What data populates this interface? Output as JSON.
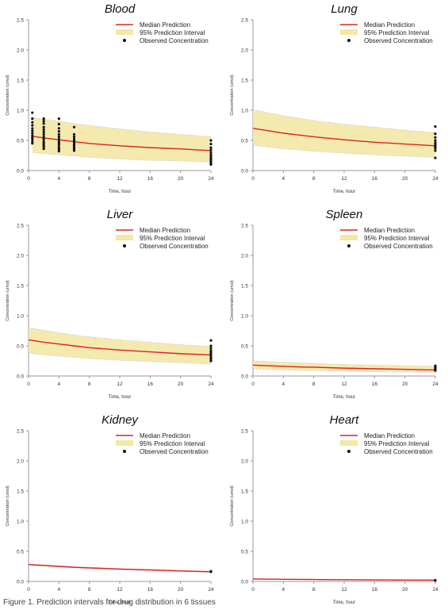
{
  "figure": {
    "caption": "Figure 1. Prediction intervals for drug distribution in 6 tissues",
    "colors": {
      "median": "#e02020",
      "band_fill": "#f3e8a6",
      "band_edge": "#c8c8c8",
      "observed": "#111111",
      "axis": "#999999"
    }
  },
  "chart_data": [
    {
      "type": "line",
      "title": "Blood",
      "xlabel": "Time, hour",
      "ylabel": "Concentration (umol)",
      "xlim": [
        0,
        24
      ],
      "ylim": [
        0,
        2.5
      ],
      "xticks": [
        "0",
        "4",
        "8",
        "12",
        "16",
        "20",
        "24"
      ],
      "yticks": [
        "0.0",
        "0.5",
        "1.0",
        "1.5",
        "2.0",
        "2.5"
      ],
      "legend": [
        "Median Prediction",
        "95% Prediction Interval",
        "Observed Concentration"
      ],
      "legend_position": "top-right",
      "x": [
        0.5,
        2,
        4,
        6,
        8,
        12,
        16,
        20,
        24
      ],
      "median": [
        0.57,
        0.54,
        0.51,
        0.48,
        0.45,
        0.41,
        0.38,
        0.36,
        0.33
      ],
      "lower": [
        0.3,
        0.28,
        0.26,
        0.24,
        0.22,
        0.19,
        0.17,
        0.16,
        0.14
      ],
      "upper": [
        0.88,
        0.85,
        0.82,
        0.78,
        0.75,
        0.69,
        0.64,
        0.6,
        0.56
      ],
      "observed": {
        "x": [
          0.5,
          0.5,
          0.5,
          0.5,
          0.5,
          0.5,
          0.5,
          0.5,
          0.5,
          0.5,
          0.5,
          0.5,
          2,
          2,
          2,
          2,
          2,
          2,
          2,
          2,
          2,
          2,
          2,
          2,
          2,
          2,
          4,
          4,
          4,
          4,
          4,
          4,
          4,
          4,
          4,
          4,
          4,
          4,
          4,
          6,
          6,
          6,
          6,
          6,
          6,
          6,
          6,
          6,
          6,
          6,
          24,
          24,
          24,
          24,
          24,
          24,
          24,
          24,
          24,
          24,
          24,
          24,
          24
        ],
        "y": [
          0.96,
          0.86,
          0.8,
          0.75,
          0.7,
          0.66,
          0.62,
          0.58,
          0.55,
          0.52,
          0.48,
          0.45,
          0.86,
          0.82,
          0.78,
          0.72,
          0.68,
          0.64,
          0.6,
          0.56,
          0.52,
          0.48,
          0.45,
          0.42,
          0.39,
          0.36,
          0.86,
          0.77,
          0.7,
          0.65,
          0.6,
          0.56,
          0.52,
          0.48,
          0.45,
          0.42,
          0.38,
          0.35,
          0.32,
          0.72,
          0.6,
          0.56,
          0.52,
          0.49,
          0.46,
          0.43,
          0.41,
          0.38,
          0.36,
          0.33,
          0.5,
          0.44,
          0.38,
          0.34,
          0.3,
          0.26,
          0.23,
          0.2,
          0.18,
          0.16,
          0.14,
          0.12,
          0.1
        ]
      }
    },
    {
      "type": "line",
      "title": "Lung",
      "xlabel": "Time, hour",
      "ylabel": "Concentration (umol)",
      "xlim": [
        0,
        24
      ],
      "ylim": [
        0,
        2.5
      ],
      "xticks": [
        "0",
        "4",
        "8",
        "12",
        "16",
        "20",
        "24"
      ],
      "yticks": [
        "0.0",
        "0.5",
        "1.0",
        "1.5",
        "2.0",
        "2.5"
      ],
      "legend": [
        "Median Prediction",
        "95% Prediction Interval",
        "Observed Concentration"
      ],
      "legend_position": "top-right",
      "x": [
        0,
        2,
        4,
        6,
        8,
        12,
        16,
        20,
        24
      ],
      "median": [
        0.7,
        0.66,
        0.62,
        0.59,
        0.56,
        0.51,
        0.47,
        0.44,
        0.41
      ],
      "lower": [
        0.42,
        0.39,
        0.36,
        0.34,
        0.32,
        0.29,
        0.26,
        0.24,
        0.22
      ],
      "upper": [
        1.01,
        0.96,
        0.91,
        0.87,
        0.83,
        0.77,
        0.72,
        0.67,
        0.63
      ],
      "observed": {
        "x": [
          24,
          24,
          24,
          24,
          24,
          24,
          24,
          24,
          24,
          24
        ],
        "y": [
          0.73,
          0.61,
          0.55,
          0.5,
          0.46,
          0.43,
          0.4,
          0.37,
          0.33,
          0.21
        ]
      }
    },
    {
      "type": "line",
      "title": "Liver",
      "xlabel": "Time, hour",
      "ylabel": "Concentration (umol)",
      "xlim": [
        0,
        24
      ],
      "ylim": [
        0,
        2.5
      ],
      "xticks": [
        "0",
        "4",
        "8",
        "12",
        "16",
        "20",
        "24"
      ],
      "yticks": [
        "0.0",
        "0.5",
        "1.0",
        "1.5",
        "2.0",
        "2.5"
      ],
      "legend": [
        "Median Prediction",
        "95% Prediction Interval",
        "Observed Concentration"
      ],
      "legend_position": "top-right",
      "x": [
        0,
        2,
        4,
        6,
        8,
        12,
        16,
        20,
        24
      ],
      "median": [
        0.6,
        0.56,
        0.53,
        0.5,
        0.47,
        0.43,
        0.4,
        0.37,
        0.35
      ],
      "lower": [
        0.38,
        0.35,
        0.33,
        0.31,
        0.29,
        0.26,
        0.24,
        0.22,
        0.2
      ],
      "upper": [
        0.8,
        0.76,
        0.72,
        0.68,
        0.65,
        0.6,
        0.56,
        0.52,
        0.49
      ],
      "observed": {
        "x": [
          24,
          24,
          24,
          24,
          24,
          24,
          24,
          24,
          24,
          24
        ],
        "y": [
          0.59,
          0.5,
          0.46,
          0.42,
          0.39,
          0.36,
          0.33,
          0.3,
          0.28,
          0.25
        ]
      }
    },
    {
      "type": "line",
      "title": "Spleen",
      "xlabel": "Time, hour",
      "ylabel": "Concentration (umol)",
      "xlim": [
        0,
        24
      ],
      "ylim": [
        0,
        2.5
      ],
      "xticks": [
        "0",
        "4",
        "8",
        "12",
        "16",
        "20",
        "24"
      ],
      "yticks": [
        "0.0",
        "0.5",
        "1.0",
        "1.5",
        "2.0",
        "2.5"
      ],
      "legend": [
        "Median Prediction",
        "95% Prediction Interval",
        "Observed Concentration"
      ],
      "legend_position": "top-right",
      "x": [
        0,
        2,
        4,
        6,
        8,
        12,
        16,
        20,
        24
      ],
      "median": [
        0.18,
        0.17,
        0.16,
        0.15,
        0.145,
        0.13,
        0.12,
        0.11,
        0.1
      ],
      "lower": [
        0.12,
        0.11,
        0.1,
        0.095,
        0.09,
        0.08,
        0.07,
        0.065,
        0.06
      ],
      "upper": [
        0.25,
        0.24,
        0.23,
        0.22,
        0.21,
        0.19,
        0.18,
        0.17,
        0.16
      ],
      "observed": {
        "x": [
          24,
          24,
          24,
          24,
          24,
          24,
          24,
          24
        ],
        "y": [
          0.17,
          0.15,
          0.14,
          0.13,
          0.12,
          0.11,
          0.1,
          0.09
        ]
      }
    },
    {
      "type": "line",
      "title": "Kidney",
      "xlabel": "Time, hour",
      "ylabel": "Concentration (umol)",
      "xlim": [
        0,
        24
      ],
      "ylim": [
        0,
        2.5
      ],
      "xticks": [
        "0",
        "4",
        "8",
        "12",
        "16",
        "20",
        "24"
      ],
      "yticks": [
        "0.0",
        "0.5",
        "1.0",
        "1.5",
        "2.0",
        "2.5"
      ],
      "legend": [
        "Median Prediction",
        "95% Prediction Interval",
        "Observed Concentration"
      ],
      "legend_position": "top-right",
      "x": [
        0,
        2,
        4,
        6,
        8,
        12,
        16,
        20,
        24
      ],
      "median": [
        0.28,
        0.265,
        0.25,
        0.235,
        0.225,
        0.205,
        0.19,
        0.175,
        0.16
      ],
      "lower": [
        0.27,
        0.255,
        0.24,
        0.225,
        0.215,
        0.195,
        0.18,
        0.165,
        0.15
      ],
      "upper": [
        0.29,
        0.275,
        0.26,
        0.245,
        0.235,
        0.215,
        0.2,
        0.185,
        0.17
      ],
      "observed": {
        "x": [
          24,
          24
        ],
        "y": [
          0.17,
          0.16
        ]
      }
    },
    {
      "type": "line",
      "title": "Heart",
      "xlabel": "Time, hour",
      "ylabel": "Concentration (umol)",
      "xlim": [
        0,
        24
      ],
      "ylim": [
        0,
        2.5
      ],
      "xticks": [
        "0",
        "4",
        "8",
        "12",
        "16",
        "20",
        "24"
      ],
      "yticks": [
        "0.0",
        "0.5",
        "1.0",
        "1.5",
        "2.0",
        "2.5"
      ],
      "legend": [
        "Median Prediction",
        "95% Prediction Interval",
        "Observed Concentration"
      ],
      "legend_position": "top-right",
      "x": [
        0,
        2,
        4,
        6,
        8,
        12,
        16,
        20,
        24
      ],
      "median": [
        0.04,
        0.038,
        0.036,
        0.034,
        0.032,
        0.029,
        0.026,
        0.024,
        0.022
      ],
      "lower": [
        0.035,
        0.033,
        0.031,
        0.029,
        0.027,
        0.024,
        0.022,
        0.02,
        0.018
      ],
      "upper": [
        0.045,
        0.043,
        0.041,
        0.039,
        0.037,
        0.034,
        0.031,
        0.028,
        0.026
      ],
      "observed": {
        "x": [
          24,
          24
        ],
        "y": [
          0.02,
          0.015
        ]
      }
    }
  ]
}
